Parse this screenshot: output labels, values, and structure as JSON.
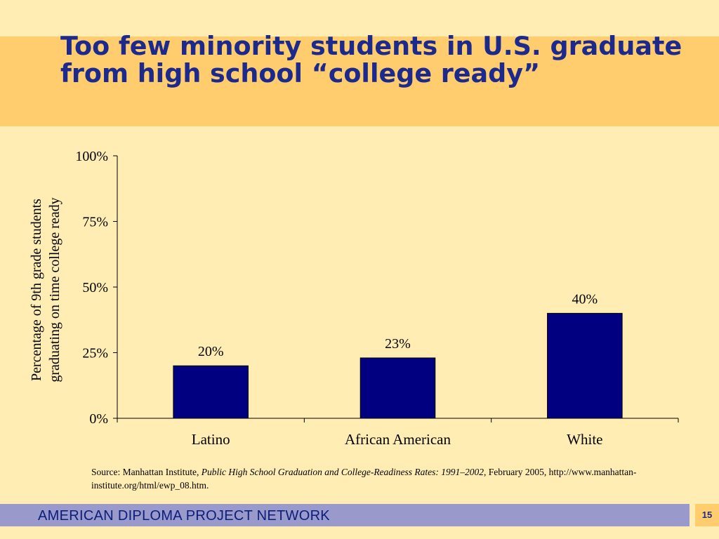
{
  "slide": {
    "title": "Too few minority students in U.S. graduate from high school “college ready”",
    "footer": "AMERICAN DIPLOMA PROJECT NETWORK",
    "page_number": "15"
  },
  "source": {
    "prefix": "Source: Manhattan Institute, ",
    "title": "Public High School Graduation and College-Readiness Rates: 1991–2002",
    "suffix": ", February 2005, http://www.manhattan-institute.org/html/ewp_08.htm."
  },
  "colors": {
    "background": "#FFEDB3",
    "title_band": "#FFCC6E",
    "title_text": "#1B2A8C",
    "bar_fill": "#000080",
    "footer_band": "#9999CC",
    "footer_text": "#0A1E7A"
  },
  "chart_data": {
    "type": "bar",
    "categories": [
      "Latino",
      "African American",
      "White"
    ],
    "values": [
      20,
      23,
      40
    ],
    "value_labels": [
      "20%",
      "23%",
      "40%"
    ],
    "ylabel_lines": [
      "Percentage of 9th grade students",
      "graduating on time college ready"
    ],
    "xlabel": "",
    "ylim": [
      0,
      100
    ],
    "yticks": [
      0,
      25,
      50,
      75,
      100
    ],
    "ytick_labels": [
      "0%",
      "25%",
      "50%",
      "75%",
      "100%"
    ],
    "grid": false,
    "legend": "none"
  }
}
